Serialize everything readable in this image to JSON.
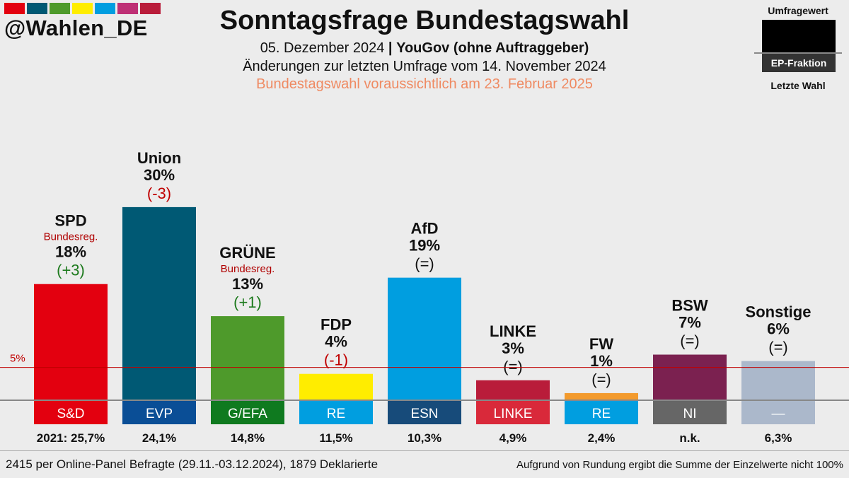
{
  "brand": {
    "handle": "@Wahlen_DE",
    "stripe_colors": [
      "#e3000f",
      "#005974",
      "#4e9a2b",
      "#ffed00",
      "#009ee0",
      "#be3075",
      "#b91c3a"
    ]
  },
  "header": {
    "title": "Sonntagsfrage Bundestagswahl",
    "date": "05. Dezember 2024",
    "separator": "|",
    "pollster": "YouGov (ohne Auftraggeber)",
    "changes_note": "Änderungen zur letzten Umfrage vom 14. November 2024",
    "election_note": "Bundestagswahl voraussichtlich am 23. Februar 2025"
  },
  "legend": {
    "top_label": "Umfragewert",
    "ep_label": "EP-Fraktion",
    "bottom_label": "Letzte Wahl"
  },
  "chart_data": {
    "type": "bar",
    "threshold": {
      "value": 5,
      "label": "5%"
    },
    "previous_election_prefix": "2021: ",
    "categories": [
      "SPD",
      "Union",
      "GRÜNE",
      "FDP",
      "AfD",
      "LINKE",
      "FW",
      "BSW",
      "Sonstige"
    ],
    "bars": [
      {
        "party": "SPD",
        "value": 18,
        "value_label": "18%",
        "change": "(+3)",
        "change_type": "up",
        "note": "Bundesreg.",
        "color": "#e3000f",
        "ep_group": "S&D",
        "ep_color": "#e3000f",
        "last_election": "25,7%"
      },
      {
        "party": "Union",
        "value": 30,
        "value_label": "30%",
        "change": "(-3)",
        "change_type": "down",
        "note": "",
        "color": "#005974",
        "ep_group": "EVP",
        "ep_color": "#0a4e96",
        "last_election": "24,1%"
      },
      {
        "party": "GRÜNE",
        "value": 13,
        "value_label": "13%",
        "change": "(+1)",
        "change_type": "up",
        "note": "Bundesreg.",
        "color": "#4e9a2b",
        "ep_group": "G/EFA",
        "ep_color": "#0f7a1f",
        "last_election": "14,8%"
      },
      {
        "party": "FDP",
        "value": 4,
        "value_label": "4%",
        "change": "(-1)",
        "change_type": "down",
        "note": "",
        "color": "#ffed00",
        "ep_group": "RE",
        "ep_color": "#009ee0",
        "last_election": "11,5%"
      },
      {
        "party": "AfD",
        "value": 19,
        "value_label": "19%",
        "change": "(=)",
        "change_type": "same",
        "note": "",
        "color": "#009ee0",
        "ep_group": "ESN",
        "ep_color": "#174b7a",
        "last_election": "10,3%"
      },
      {
        "party": "LINKE",
        "value": 3,
        "value_label": "3%",
        "change": "(=)",
        "change_type": "same",
        "note": "",
        "color": "#b91c3a",
        "ep_group": "LINKE",
        "ep_color": "#d9293a",
        "last_election": "4,9%"
      },
      {
        "party": "FW",
        "value": 1,
        "value_label": "1%",
        "change": "(=)",
        "change_type": "same",
        "note": "",
        "color": "#f39a2c",
        "ep_group": "RE",
        "ep_color": "#009ee0",
        "last_election": "2,4%"
      },
      {
        "party": "BSW",
        "value": 7,
        "value_label": "7%",
        "change": "(=)",
        "change_type": "same",
        "note": "",
        "color": "#7b2150",
        "ep_group": "NI",
        "ep_color": "#666666",
        "last_election": "n.k."
      },
      {
        "party": "Sonstige",
        "value": 6,
        "value_label": "6%",
        "change": "(=)",
        "change_type": "same",
        "note": "",
        "color": "#abb8cb",
        "ep_group": "—",
        "ep_color": "#abb8cb",
        "last_election": "6,3%"
      }
    ],
    "change_colors": {
      "up": "#1d7a1d",
      "down": "#c00000",
      "same": "#111111"
    },
    "note_color": "#b00000"
  },
  "footer": {
    "sample": "2415 per Online-Panel Befragte (29.11.-03.12.2024), 1879 Deklarierte",
    "rounding_note": "Aufgrund von Rundung ergibt die Summe der Einzelwerte nicht 100%"
  }
}
